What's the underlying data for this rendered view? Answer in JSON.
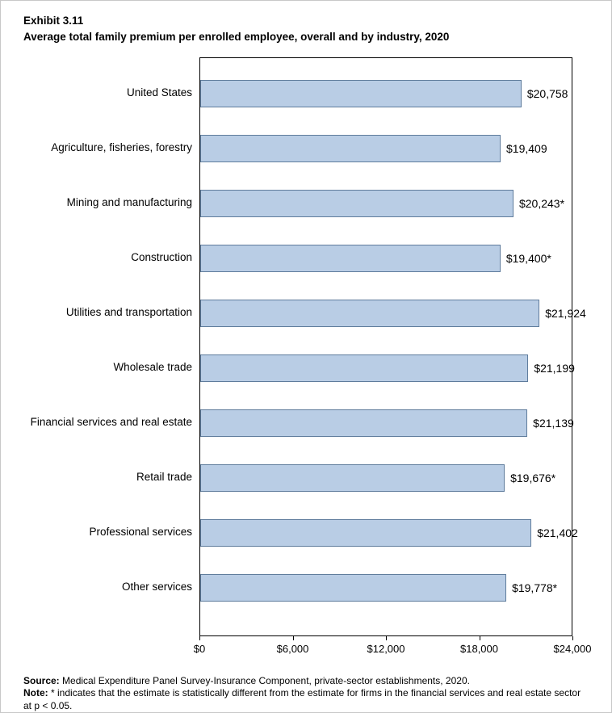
{
  "header": {
    "exhibit": "Exhibit 3.11",
    "title": "Average total family premium per enrolled employee, overall and by industry, 2020"
  },
  "chart_data": {
    "type": "bar",
    "orientation": "horizontal",
    "title": "Average total family premium per enrolled employee, overall and by industry, 2020",
    "categories": [
      "United States",
      "Agriculture, fisheries, forestry",
      "Mining and manufacturing",
      "Construction",
      "Utilities and transportation",
      "Wholesale trade",
      "Financial services and real estate",
      "Retail trade",
      "Professional services",
      "Other services"
    ],
    "values": [
      20758,
      19409,
      20243,
      19400,
      21924,
      21199,
      21139,
      19676,
      21402,
      19778
    ],
    "value_labels": [
      "$20,758",
      "$19,409",
      "$20,243*",
      "$19,400*",
      "$21,924",
      "$21,199",
      "$21,139",
      "$19,676*",
      "$21,402",
      "$19,778*"
    ],
    "xlim": [
      0,
      24000
    ],
    "x_tick_values": [
      0,
      6000,
      12000,
      18000,
      24000
    ],
    "x_tick_labels": [
      "$0",
      "$6,000",
      "$12,000",
      "$18,000",
      "$24,000"
    ],
    "bar_fill": "#b9cde5",
    "bar_border": "#5f7c9c",
    "grid": false,
    "legend": "none"
  },
  "footer": {
    "source_label": "Source:",
    "source_text": " Medical Expenditure Panel Survey-Insurance Component, private-sector establishments, 2020.",
    "note_label": "Note:",
    "note_text": "  * indicates that the estimate is statistically different from the estimate for firms in the financial services and real estate sector at p < 0.05."
  }
}
